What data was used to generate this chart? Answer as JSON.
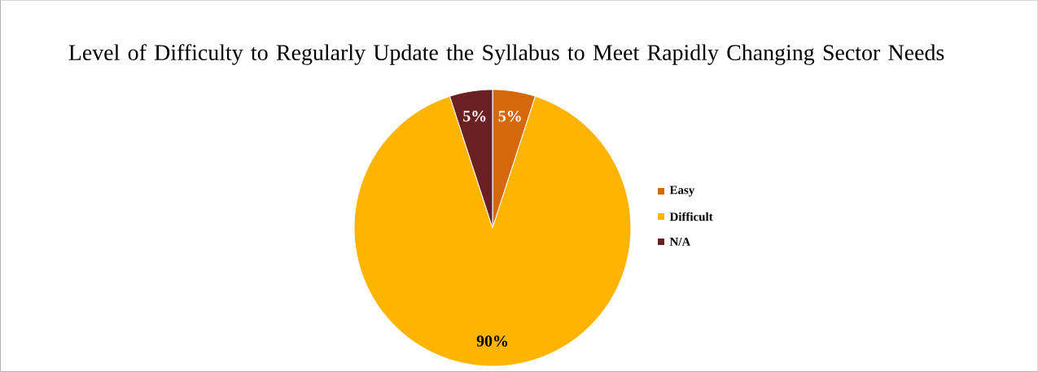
{
  "chart_data": {
    "type": "pie",
    "title": "Level of Difficulty to Regularly Update the Syllabus to Meet Rapidly Changing Sector Needs",
    "categories": [
      "Easy",
      "Difficult",
      "N/A"
    ],
    "values": [
      5,
      90,
      5
    ],
    "colors": [
      "#d4680a",
      "#ffb400",
      "#6a1f22"
    ],
    "value_labels": [
      "5%",
      "90%",
      "5%"
    ],
    "legend": "right"
  }
}
